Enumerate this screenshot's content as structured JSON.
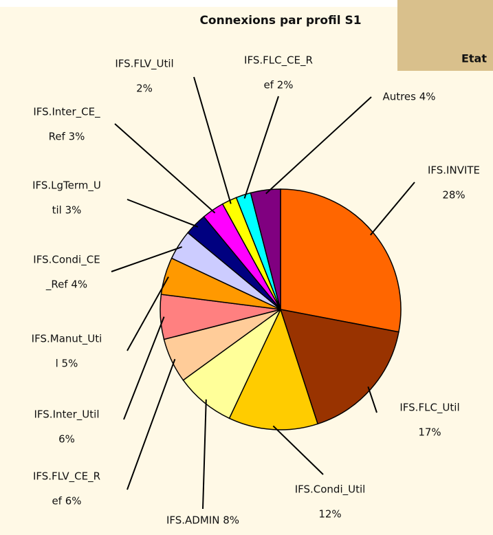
{
  "chart_data": {
    "type": "pie",
    "title": "Connexions par profil S1",
    "panel_label": "Etat",
    "labels": [
      [
        "IFS.INVITE",
        "28%"
      ],
      [
        "IFS.FLC_Util",
        "17%"
      ],
      [
        "IFS.Condi_Util",
        "12%"
      ],
      [
        "IFS.ADMIN 8%"
      ],
      [
        "IFS.FLV_CE_R",
        "ef 6%"
      ],
      [
        "IFS.Inter_Util",
        "6%"
      ],
      [
        "IFS.Manut_Uti",
        "l 5%"
      ],
      [
        "IFS.Condi_CE",
        "_Ref 4%"
      ],
      [
        "IFS.LgTerm_U",
        "til 3%"
      ],
      [
        "IFS.Inter_CE_",
        "Ref 3%"
      ],
      [
        "IFS.FLV_Util",
        "2%"
      ],
      [
        "IFS.FLC_CE_R",
        "ef 2%"
      ],
      [
        "Autres 4%"
      ]
    ],
    "values": [
      28,
      17,
      12,
      8,
      6,
      6,
      5,
      4,
      3,
      3,
      2,
      2,
      4
    ],
    "colors": [
      "#ff6600",
      "#993300",
      "#ffcc00",
      "#ffff99",
      "#ffcc99",
      "#ff8080",
      "#ff9900",
      "#ccccff",
      "#000080",
      "#ff00ff",
      "#ffff00",
      "#00ffff",
      "#800080"
    ]
  }
}
